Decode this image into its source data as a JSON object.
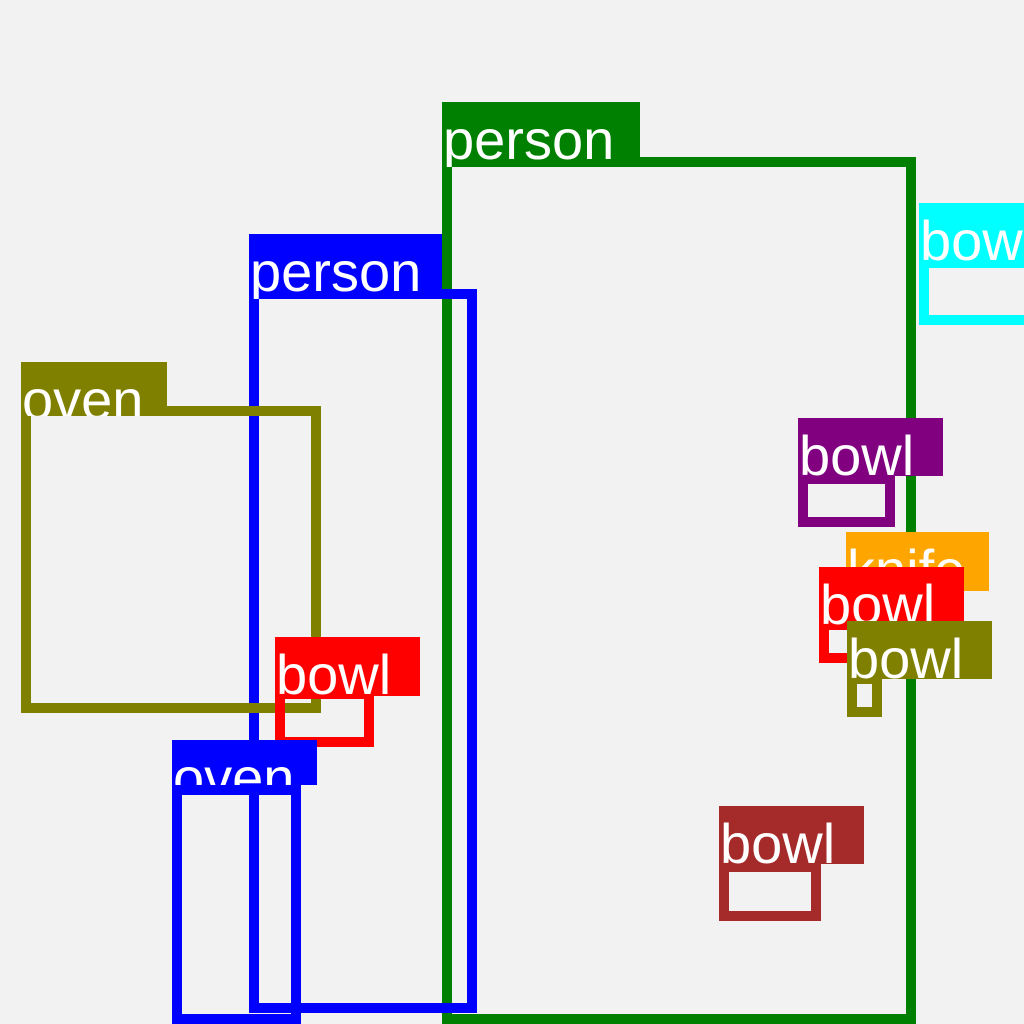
{
  "detections": [
    {
      "label": "person",
      "color": "#008000"
    },
    {
      "label": "person",
      "color": "#0000ff"
    },
    {
      "label": "bowl",
      "color": "#00ffff"
    },
    {
      "label": "oven",
      "color": "#808000"
    },
    {
      "label": "bowl",
      "color": "#800080"
    },
    {
      "label": "knife",
      "color": "#ffa500"
    },
    {
      "label": "bowl",
      "color": "#ff0000"
    },
    {
      "label": "bowl",
      "color": "#808000"
    },
    {
      "label": "bowl",
      "color": "#ff0000"
    },
    {
      "label": "oven",
      "color": "#0000ff"
    },
    {
      "label": "bowl",
      "color": "#a52a2a"
    }
  ]
}
